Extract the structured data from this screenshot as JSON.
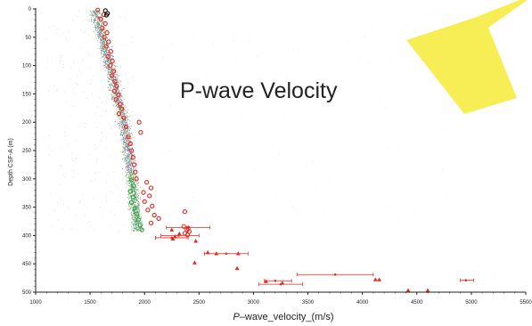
{
  "overlay": {
    "title": "P-wave Velocity",
    "star_color": "#f7ee55"
  },
  "chart_data": {
    "type": "scatter",
    "title": "P-wave Velocity",
    "xlabel_prefix": "P",
    "xlabel_rest": "–wave_velocity_(m/s)",
    "ylabel": "Depth CSF-A (m)",
    "xlim": [
      1000,
      5500
    ],
    "ylim": [
      0,
      500
    ],
    "y_inverted": true,
    "x_ticks": [
      1000,
      1500,
      2000,
      2500,
      3000,
      3500,
      4000,
      4500,
      5000,
      5500
    ],
    "y_ticks": [
      0,
      50,
      100,
      150,
      200,
      250,
      300,
      350,
      400,
      450,
      500
    ],
    "grid": false,
    "colors": {
      "discrete": "#e8281e",
      "error_bar": "#e8281e",
      "logger_blue": "#3a5fc9",
      "logger_green": "#37a63a",
      "logger_orange": "#e08a3c",
      "logger_grey": "#8a8a8a",
      "caliper_black": "#111111"
    },
    "series": [
      {
        "marker": "circle-open",
        "color": "#e8281e",
        "points": [
          [
            1570,
            2
          ],
          [
            1625,
            10
          ],
          [
            1598,
            18
          ],
          [
            1640,
            26
          ],
          [
            1612,
            34
          ],
          [
            1655,
            42
          ],
          [
            1630,
            50
          ],
          [
            1670,
            58
          ],
          [
            1648,
            66
          ],
          [
            1690,
            75
          ],
          [
            1665,
            84
          ],
          [
            1705,
            92
          ],
          [
            1685,
            100
          ],
          [
            1718,
            110
          ],
          [
            1700,
            118
          ],
          [
            1728,
            128
          ],
          [
            1742,
            136
          ],
          [
            1722,
            145
          ],
          [
            1760,
            152
          ],
          [
            1738,
            160
          ],
          [
            1775,
            168
          ],
          [
            1790,
            176
          ],
          [
            1765,
            185
          ],
          [
            1810,
            192
          ],
          [
            1950,
            200
          ],
          [
            1830,
            208
          ],
          [
            1965,
            218
          ],
          [
            1850,
            226
          ],
          [
            1870,
            238
          ],
          [
            1880,
            250
          ],
          [
            1895,
            262
          ],
          [
            1905,
            275
          ],
          [
            1915,
            288
          ],
          [
            1925,
            300
          ],
          [
            2020,
            306
          ],
          [
            2060,
            316
          ],
          [
            1990,
            324
          ],
          [
            2045,
            330
          ],
          [
            2000,
            340
          ],
          [
            2070,
            348
          ],
          [
            2030,
            355
          ],
          [
            2370,
            358
          ],
          [
            2090,
            364
          ],
          [
            2130,
            370
          ],
          [
            2060,
            378
          ],
          [
            2360,
            384
          ],
          [
            2400,
            387
          ],
          [
            2390,
            390
          ],
          [
            2410,
            393
          ],
          [
            2370,
            396
          ],
          [
            2395,
            399
          ]
        ]
      },
      {
        "marker": "triangle",
        "color": "#e8281e",
        "points": [
          [
            2250,
            390
          ],
          [
            2320,
            397
          ],
          [
            2280,
            402
          ],
          [
            2260,
            406
          ],
          [
            2470,
            410
          ],
          [
            2580,
            430
          ],
          [
            2660,
            432
          ],
          [
            2860,
            432
          ],
          [
            2460,
            448
          ],
          [
            2850,
            458
          ],
          [
            3115,
            481
          ],
          [
            3265,
            484
          ],
          [
            4120,
            478
          ],
          [
            4155,
            478
          ],
          [
            4420,
            497
          ],
          [
            4600,
            497
          ]
        ]
      },
      {
        "marker": "dot-errorbar",
        "color": "#e8281e",
        "points": [
          {
            "x": 2400,
            "y": 386,
            "xmin": 2200,
            "xmax": 2600
          },
          {
            "x": 2310,
            "y": 400,
            "xmin": 2150,
            "xmax": 2500
          },
          {
            "x": 2250,
            "y": 404,
            "xmin": 2100,
            "xmax": 2400
          },
          {
            "x": 2750,
            "y": 432,
            "xmin": 2550,
            "xmax": 2950
          },
          {
            "x": 3250,
            "y": 486,
            "xmin": 3050,
            "xmax": 3450
          },
          {
            "x": 3750,
            "y": 469,
            "xmin": 3400,
            "xmax": 4100
          },
          {
            "x": 3200,
            "y": 480,
            "xmin": 3100,
            "xmax": 3350
          },
          {
            "x": 4950,
            "y": 479,
            "xmin": 4900,
            "xmax": 5020
          }
        ]
      },
      {
        "marker": "circle-open",
        "color": "#37a63a",
        "points": [
          [
            1880,
            302
          ],
          [
            1900,
            312
          ],
          [
            1870,
            322
          ],
          [
            1895,
            332
          ],
          [
            1880,
            342
          ],
          [
            1910,
            352
          ],
          [
            1930,
            362
          ],
          [
            1945,
            372
          ],
          [
            1960,
            382
          ],
          [
            1975,
            390
          ]
        ]
      },
      {
        "marker": "circle-open",
        "color": "#111111",
        "points": [
          [
            1640,
            3
          ],
          [
            1660,
            8
          ],
          [
            1650,
            11
          ]
        ]
      }
    ]
  }
}
